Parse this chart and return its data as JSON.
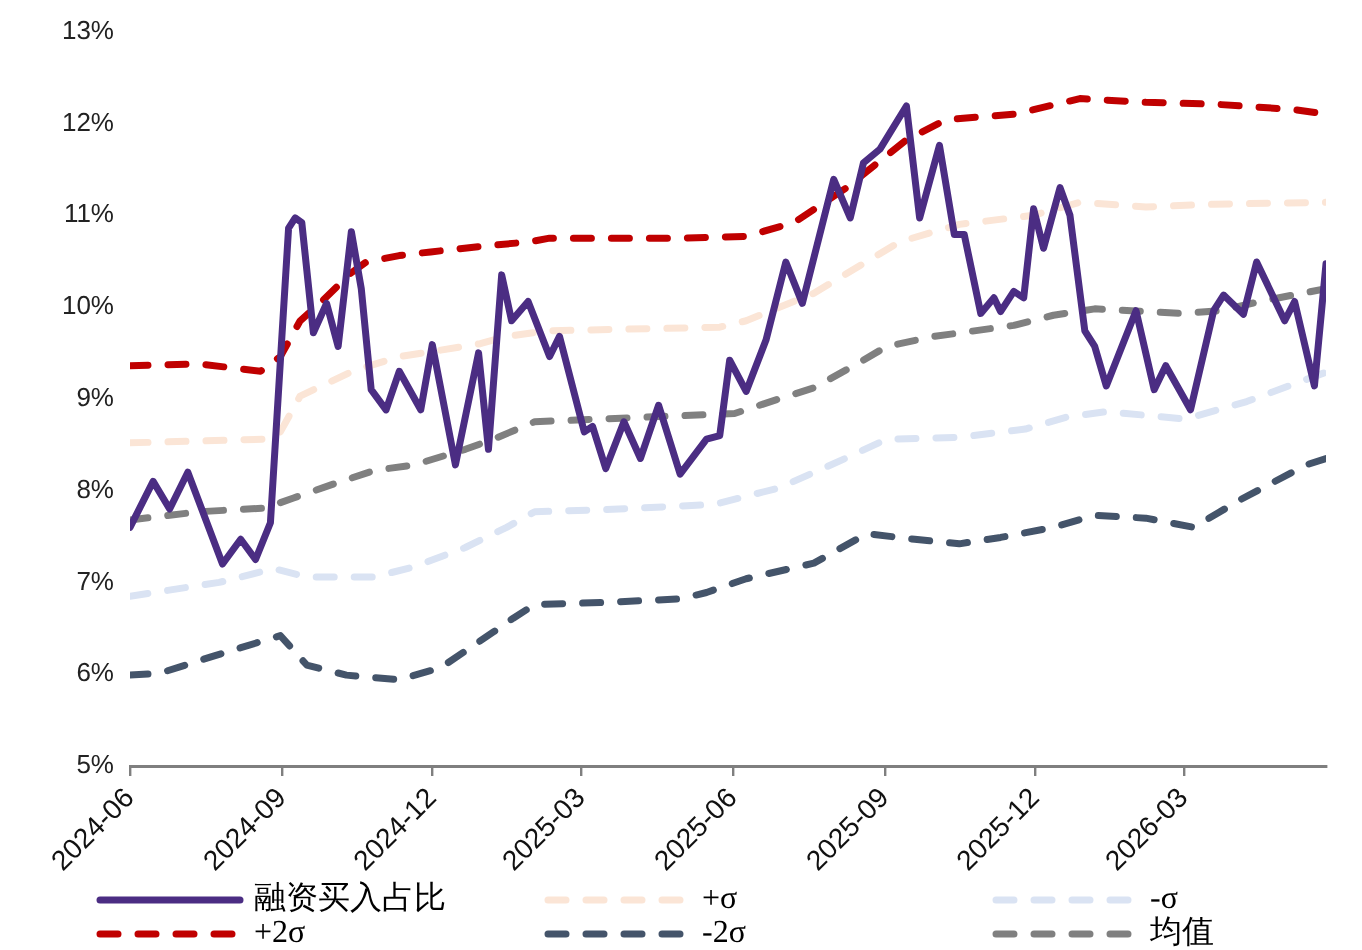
{
  "chart_data": {
    "type": "line",
    "xlim": [
      "2024-06-01",
      "2026-05-26"
    ],
    "xticks": [
      "2024-06",
      "2024-09",
      "2024-12",
      "2025-03",
      "2025-06",
      "2025-09",
      "2025-12",
      "2026-03"
    ],
    "ylim": [
      5,
      13
    ],
    "yticks": [
      {
        "value": 5,
        "label": "5%"
      },
      {
        "value": 6,
        "label": "6%"
      },
      {
        "value": 7,
        "label": "7%"
      },
      {
        "value": 8,
        "label": "8%"
      },
      {
        "value": 9,
        "label": "9%"
      },
      {
        "value": 10,
        "label": "10%"
      },
      {
        "value": 11,
        "label": "11%"
      },
      {
        "value": 12,
        "label": "12%"
      },
      {
        "value": 13,
        "label": "13%"
      }
    ],
    "grid": false,
    "legend": "bottom",
    "marker": "none",
    "series": [
      {
        "name": "融资买入占比",
        "color": "#4b2d83",
        "line_style": "solid",
        "x": [
          "2024-06-01",
          "2024-06-15",
          "2024-06-25",
          "2024-07-06",
          "2024-07-27",
          "2024-08-07",
          "2024-08-16",
          "2024-08-25",
          "2024-08-31",
          "2024-09-05",
          "2024-09-09",
          "2024-09-13",
          "2024-09-20",
          "2024-09-28",
          "2024-10-05",
          "2024-10-13",
          "2024-10-19",
          "2024-10-25",
          "2024-11-03",
          "2024-11-11",
          "2024-11-24",
          "2024-12-01",
          "2024-12-15",
          "2024-12-29",
          "2025-01-04",
          "2025-01-12",
          "2025-01-18",
          "2025-01-28",
          "2025-02-10",
          "2025-02-16",
          "2025-03-03",
          "2025-03-08",
          "2025-03-16",
          "2025-03-27",
          "2025-04-06",
          "2025-04-17",
          "2025-04-30",
          "2025-05-16",
          "2025-05-24",
          "2025-05-30",
          "2025-06-09",
          "2025-06-21",
          "2025-07-03",
          "2025-07-13",
          "2025-08-01",
          "2025-08-11",
          "2025-08-19",
          "2025-08-29",
          "2025-09-14",
          "2025-09-22",
          "2025-10-04",
          "2025-10-13",
          "2025-10-19",
          "2025-10-29",
          "2025-11-06",
          "2025-11-10",
          "2025-11-18",
          "2025-11-24",
          "2025-11-30",
          "2025-12-06",
          "2025-12-16",
          "2025-12-22",
          "2025-12-31",
          "2026-01-06",
          "2026-01-13",
          "2026-01-31",
          "2026-02-11",
          "2026-02-18",
          "2026-03-05",
          "2026-03-19",
          "2026-03-25",
          "2026-04-06",
          "2026-04-14",
          "2026-05-01",
          "2026-05-07",
          "2026-05-19",
          "2026-05-26"
        ],
        "values": [
          7.6,
          8.1,
          7.8,
          8.2,
          7.2,
          7.47,
          7.25,
          7.65,
          9.4,
          10.86,
          10.97,
          10.92,
          9.72,
          10.04,
          9.57,
          10.82,
          10.2,
          9.1,
          8.88,
          9.3,
          8.88,
          9.59,
          8.28,
          9.5,
          8.45,
          10.35,
          9.85,
          10.06,
          9.46,
          9.68,
          8.64,
          8.7,
          8.24,
          8.75,
          8.35,
          8.93,
          8.18,
          8.56,
          8.6,
          9.42,
          9.08,
          9.64,
          10.49,
          10.04,
          11.39,
          10.97,
          11.57,
          11.72,
          12.19,
          10.97,
          11.76,
          10.79,
          10.79,
          9.93,
          10.1,
          9.95,
          10.17,
          10.1,
          11.07,
          10.64,
          11.3,
          11.0,
          9.74,
          9.57,
          9.14,
          9.96,
          9.1,
          9.36,
          8.88,
          9.96,
          10.13,
          9.92,
          10.49,
          9.85,
          10.06,
          9.14,
          10.47
        ]
      },
      {
        "name": "+σ",
        "color": "#fbe5d6",
        "line_style": "dashed",
        "x": [
          "2024-06-01",
          "2024-08-22",
          "2024-08-31",
          "2024-09-12",
          "2024-10-15",
          "2024-11-11",
          "2024-12-06",
          "2024-12-30",
          "2025-01-15",
          "2025-02-08",
          "2025-05-24",
          "2025-06-09",
          "2025-07-20",
          "2025-09-10",
          "2025-10-16",
          "2025-11-30",
          "2025-12-28",
          "2026-02-06",
          "2026-03-19",
          "2026-05-26"
        ],
        "values": [
          8.52,
          8.56,
          8.64,
          9.03,
          9.31,
          9.46,
          9.53,
          9.6,
          9.68,
          9.74,
          9.78,
          9.85,
          10.15,
          10.71,
          10.9,
          11.0,
          11.14,
          11.09,
          11.12,
          11.14
        ]
      },
      {
        "name": "-σ",
        "color": "#dae3f3",
        "line_style": "dashed",
        "x": [
          "2024-06-01",
          "2024-07-25",
          "2024-08-27",
          "2024-09-16",
          "2024-10-27",
          "2024-11-20",
          "2024-12-21",
          "2025-01-15",
          "2025-02-01",
          "2025-03-13",
          "2025-05-21",
          "2025-06-29",
          "2025-08-08",
          "2025-09-02",
          "2025-10-16",
          "2025-11-25",
          "2025-12-20",
          "2026-01-13",
          "2026-03-02",
          "2026-04-08",
          "2026-05-26"
        ],
        "values": [
          6.85,
          7.0,
          7.15,
          7.06,
          7.06,
          7.17,
          7.38,
          7.6,
          7.77,
          7.79,
          7.85,
          8.03,
          8.35,
          8.56,
          8.58,
          8.67,
          8.8,
          8.86,
          8.78,
          8.97,
          9.29
        ]
      },
      {
        "name": "+2σ",
        "color": "#c00000",
        "line_style": "dashed",
        "x": [
          "2024-06-01",
          "2024-07-13",
          "2024-08-19",
          "2024-08-31",
          "2024-09-12",
          "2024-09-24",
          "2024-10-12",
          "2024-10-22",
          "2024-11-11",
          "2024-11-30",
          "2024-12-30",
          "2025-01-29",
          "2025-02-10",
          "2025-04-30",
          "2025-06-09",
          "2025-07-08",
          "2025-08-08",
          "2025-09-14",
          "2025-10-08",
          "2025-11-18",
          "2025-11-30",
          "2025-12-28",
          "2026-02-06",
          "2026-03-19",
          "2026-05-07",
          "2026-05-26"
        ],
        "values": [
          9.36,
          9.38,
          9.3,
          9.46,
          9.85,
          10.04,
          10.36,
          10.49,
          10.56,
          10.6,
          10.66,
          10.71,
          10.75,
          10.75,
          10.77,
          10.92,
          11.29,
          11.82,
          12.04,
          12.1,
          12.15,
          12.27,
          12.23,
          12.21,
          12.15,
          12.1
        ]
      },
      {
        "name": "-2σ",
        "color": "#44546a",
        "line_style": "dashed",
        "x": [
          "2024-06-01",
          "2024-06-19",
          "2024-07-22",
          "2024-08-31",
          "2024-09-16",
          "2024-10-10",
          "2024-11-11",
          "2024-12-06",
          "2025-01-07",
          "2025-01-19",
          "2025-02-01",
          "2025-03-13",
          "2025-04-30",
          "2025-05-16",
          "2025-06-09",
          "2025-07-20",
          "2025-08-21",
          "2025-09-19",
          "2025-10-16",
          "2025-11-10",
          "2025-12-12",
          "2026-01-06",
          "2026-02-06",
          "2026-03-07",
          "2026-04-04",
          "2026-05-14",
          "2026-05-26"
        ],
        "values": [
          5.99,
          6.01,
          6.2,
          6.42,
          6.1,
          5.99,
          5.94,
          6.07,
          6.46,
          6.61,
          6.76,
          6.78,
          6.82,
          6.89,
          7.04,
          7.21,
          7.53,
          7.47,
          7.42,
          7.49,
          7.6,
          7.73,
          7.7,
          7.6,
          7.9,
          8.28,
          8.35
        ]
      },
      {
        "name": "均值",
        "color": "#808080",
        "line_style": "dashed",
        "x": [
          "2024-06-01",
          "2024-07-13",
          "2024-08-22",
          "2024-09-08",
          "2024-10-02",
          "2024-10-27",
          "2024-11-20",
          "2024-12-21",
          "2025-01-07",
          "2025-02-01",
          "2025-03-13",
          "2025-06-02",
          "2025-06-29",
          "2025-07-20",
          "2025-08-17",
          "2025-09-02",
          "2025-10-01",
          "2025-11-18",
          "2025-12-12",
          "2026-01-06",
          "2026-02-27",
          "2026-03-23",
          "2026-04-16",
          "2026-05-26"
        ],
        "values": [
          7.68,
          7.77,
          7.81,
          7.92,
          8.07,
          8.22,
          8.28,
          8.45,
          8.56,
          8.75,
          8.78,
          8.84,
          9.0,
          9.12,
          9.4,
          9.57,
          9.68,
          9.8,
          9.91,
          9.98,
          9.93,
          9.96,
          10.06,
          10.2
        ]
      }
    ]
  }
}
